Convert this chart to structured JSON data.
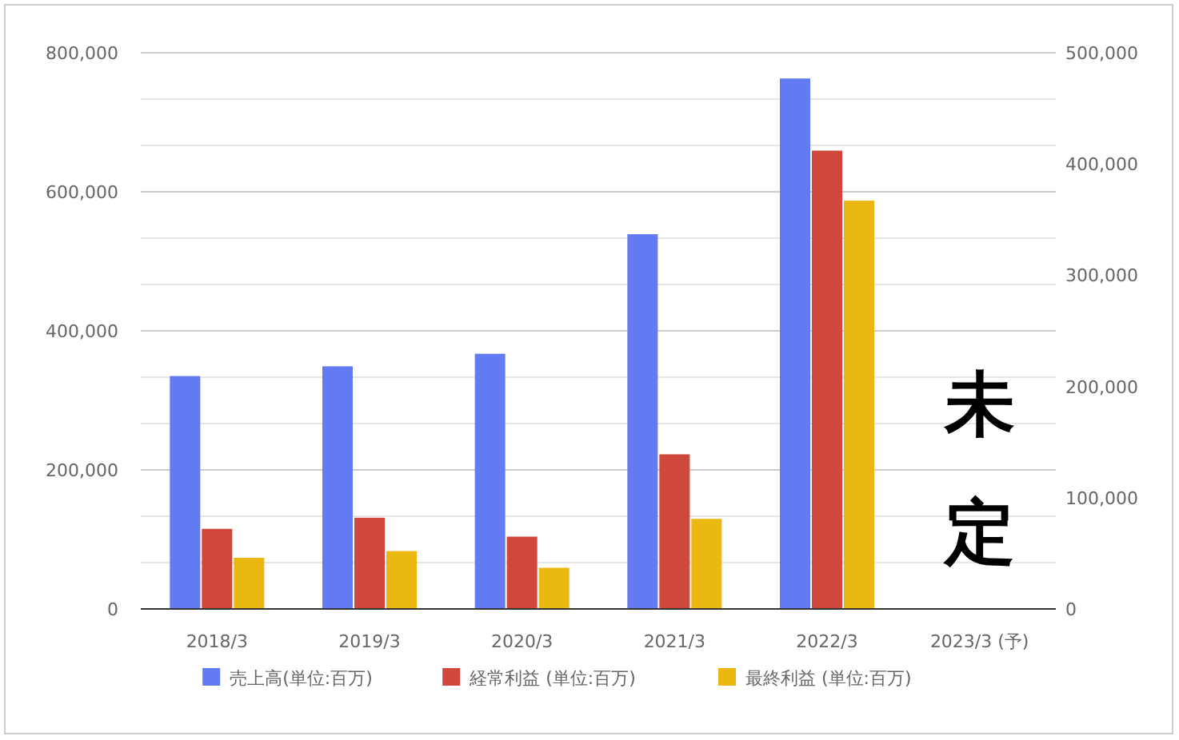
{
  "chart_data": {
    "type": "bar",
    "categories": [
      "2018/3",
      "2019/3",
      "2020/3",
      "2021/3",
      "2022/3",
      "2023/3 (予)"
    ],
    "series": [
      {
        "name": "売上高(単位:百万)",
        "color": "#637bf2",
        "values": [
          335000,
          349000,
          367000,
          539000,
          763000,
          null
        ]
      },
      {
        "name": "経常利益 (単位:百万)",
        "color": "#d0473c",
        "axis": "y2",
        "values": [
          72000,
          82000,
          65000,
          139000,
          412000,
          null
        ]
      },
      {
        "name": "最終利益 (単位:百万)",
        "color": "#ebb812",
        "axis": "y2",
        "values": [
          46000,
          52000,
          37000,
          81000,
          367000,
          null
        ]
      }
    ],
    "ylim": [
      0,
      800000
    ],
    "yticks": [
      {
        "value": 0,
        "label": "0"
      },
      {
        "value": 200000,
        "label": "200,000"
      },
      {
        "value": 400000,
        "label": "400,000"
      },
      {
        "value": 600000,
        "label": "600,000"
      },
      {
        "value": 800000,
        "label": "800,000"
      }
    ],
    "y2lim": [
      0,
      500000
    ],
    "y2ticks": [
      {
        "value": 0,
        "label": "0"
      },
      {
        "value": 100000,
        "label": "100,000"
      },
      {
        "value": 200000,
        "label": "200,000"
      },
      {
        "value": 300000,
        "label": "300,000"
      },
      {
        "value": 400000,
        "label": "400,000"
      },
      {
        "value": 500000,
        "label": "500,000"
      }
    ],
    "annotations": [
      "未定"
    ],
    "grid": true,
    "legend": "bottom"
  }
}
